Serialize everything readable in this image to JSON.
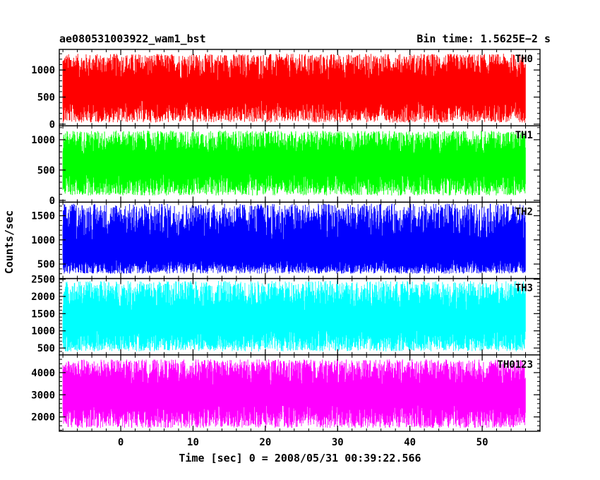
{
  "chart_data": {
    "type": "line",
    "title_left": "ae080531003922_wam1_bst",
    "title_right": "Bin time: 1.5625E−2 s",
    "xlabel": "Time [sec] 0 = 2008/05/31 00:39:22.566",
    "ylabel": "Counts/sec",
    "xlim": [
      -8.5,
      58
    ],
    "x_data_range": [
      -8,
      56
    ],
    "x_ticks": [
      0,
      10,
      20,
      30,
      40,
      50
    ],
    "x_tick_labels": [
      "0",
      "10",
      "20",
      "30",
      "40",
      "50"
    ],
    "grid": false,
    "legend": "none",
    "panels": [
      {
        "name": "TH0",
        "color": "#ff0000",
        "ylim": [
          -30,
          1380
        ],
        "y_ticks": [
          0,
          500,
          1000
        ],
        "y_tick_labels": [
          "0",
          "500",
          "1000"
        ],
        "mean": 600,
        "typical_min": 30,
        "typical_max": 1300
      },
      {
        "name": "TH1",
        "color": "#00ff00",
        "ylim": [
          -30,
          1230
        ],
        "y_ticks": [
          0,
          500,
          1000
        ],
        "y_tick_labels": [
          "0",
          "500",
          "1000"
        ],
        "mean": 600,
        "typical_min": 80,
        "typical_max": 1150
      },
      {
        "name": "TH2",
        "color": "#0000ff",
        "ylim": [
          200,
          1780
        ],
        "y_ticks": [
          500,
          1000,
          1500
        ],
        "y_tick_labels": [
          "500",
          "1000",
          "1500"
        ],
        "mean": 700,
        "typical_min": 300,
        "typical_max": 1750
      },
      {
        "name": "TH3",
        "color": "#00ffff",
        "ylim": [
          300,
          2520
        ],
        "y_ticks": [
          500,
          1000,
          1500,
          2000,
          2500
        ],
        "y_tick_labels": [
          "500",
          "1000",
          "1500",
          "2000",
          "2500"
        ],
        "mean": 1250,
        "typical_min": 400,
        "typical_max": 2450
      },
      {
        "name": "TH0123",
        "color": "#ff00ff",
        "ylim": [
          1350,
          4800
        ],
        "y_ticks": [
          2000,
          3000,
          4000
        ],
        "y_tick_labels": [
          "2000",
          "3000",
          "4000"
        ],
        "mean": 2950,
        "typical_min": 1500,
        "typical_max": 4600
      }
    ]
  }
}
